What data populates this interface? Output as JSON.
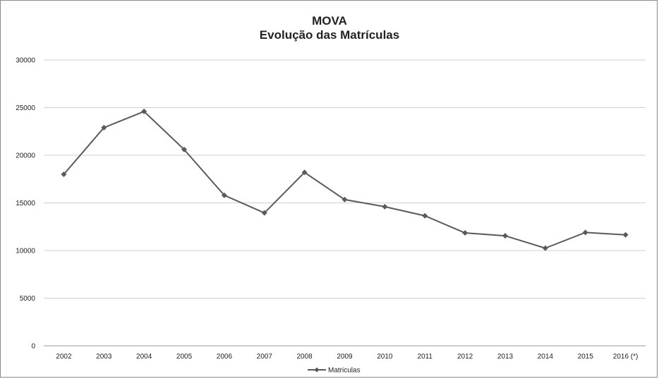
{
  "chart_data": {
    "type": "line",
    "title": "MOVA",
    "subtitle": "Evolução das Matrículas",
    "xlabel": "",
    "ylabel": "",
    "categories": [
      "2002",
      "2003",
      "2004",
      "2005",
      "2006",
      "2007",
      "2008",
      "2009",
      "2010",
      "2011",
      "2012",
      "2013",
      "2014",
      "2015",
      "2016 (*)"
    ],
    "series": [
      {
        "name": "Matriculas",
        "values": [
          18000,
          22900,
          24600,
          20600,
          15800,
          13950,
          18200,
          15350,
          14600,
          13650,
          11850,
          11550,
          10250,
          11900,
          11650
        ],
        "color": "#5a5a5a"
      }
    ],
    "ylim": [
      0,
      30000
    ],
    "yticks": [
      0,
      5000,
      10000,
      15000,
      20000,
      25000,
      30000
    ],
    "grid": true,
    "legend_position": "bottom",
    "marker": "diamond"
  }
}
